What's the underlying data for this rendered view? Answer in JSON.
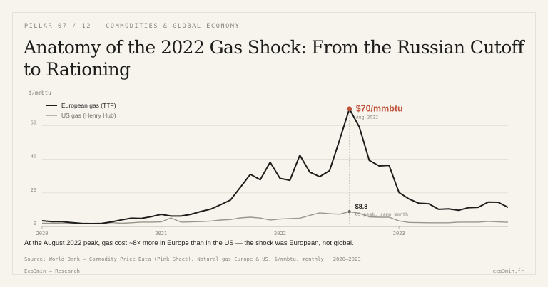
{
  "eyebrow": "PILLAR 07 / 12 — COMMODITIES & GLOBAL ECONOMY",
  "title": "Anatomy of the 2022 Gas Shock: From the Russian Cutoff to Rationing",
  "caption": "At the August 2022 peak, gas cost ~8× more in Europe than in the US — the shock was European, not global.",
  "source": "Source: World Bank — Commodity Price Data (Pink Sheet), Natural gas Europe & US, $/mmbtu, monthly · 2020–2023",
  "footer": {
    "left": "Eco3min — Research",
    "right": "eco3min.fr"
  },
  "colors": {
    "europe": "#1d1d1b",
    "us": "#9a968e",
    "accent": "#c0533a",
    "background": "#f7f4ee"
  },
  "chart_data": {
    "type": "line",
    "ylabel": "$/mmbtu",
    "ylim": [
      0,
      72
    ],
    "yticks": [
      0,
      20,
      40,
      60
    ],
    "xticks": [
      "2020",
      "2021",
      "2022",
      "2023"
    ],
    "grid": true,
    "legend_position": "top-left",
    "x_start": "2020-01",
    "x_end": "2023-12",
    "series": [
      {
        "name": "European gas (TTF)",
        "values": [
          3.4,
          2.9,
          2.8,
          2.3,
          1.8,
          1.7,
          1.8,
          2.7,
          3.9,
          4.9,
          4.8,
          5.8,
          7.2,
          6.2,
          6.2,
          7.2,
          8.9,
          10.3,
          12.9,
          15.7,
          23.3,
          31.0,
          27.8,
          38.2,
          28.6,
          27.5,
          42.4,
          32.3,
          29.6,
          33.2,
          51.3,
          70.0,
          59.1,
          39.3,
          36.0,
          36.3,
          20.2,
          16.4,
          13.8,
          13.5,
          10.2,
          10.5,
          9.6,
          11.2,
          11.4,
          14.5,
          14.4,
          11.4
        ]
      },
      {
        "name": "US gas (Henry Hub)",
        "values": [
          1.9,
          1.9,
          1.8,
          1.7,
          1.8,
          1.6,
          1.8,
          2.3,
          1.9,
          2.2,
          2.6,
          2.6,
          2.7,
          5.1,
          2.6,
          2.7,
          2.9,
          3.2,
          3.8,
          4.1,
          5.1,
          5.5,
          5.0,
          3.8,
          4.4,
          4.7,
          4.9,
          6.6,
          8.1,
          7.6,
          7.3,
          8.8,
          7.8,
          5.7,
          5.5,
          5.5,
          3.3,
          2.4,
          2.3,
          2.2,
          2.2,
          2.2,
          2.6,
          2.6,
          2.6,
          3.0,
          2.7,
          2.5
        ]
      }
    ],
    "annotations": [
      {
        "series": "European gas (TTF)",
        "date": "Aug 2022",
        "value": 70,
        "label": "$70/mmbtu",
        "sublabel": "Aug 2022"
      },
      {
        "series": "US gas (Henry Hub)",
        "date": "Aug 2022",
        "value": 8.8,
        "label": "$8.8",
        "sublabel": "US peak, same month"
      }
    ]
  }
}
